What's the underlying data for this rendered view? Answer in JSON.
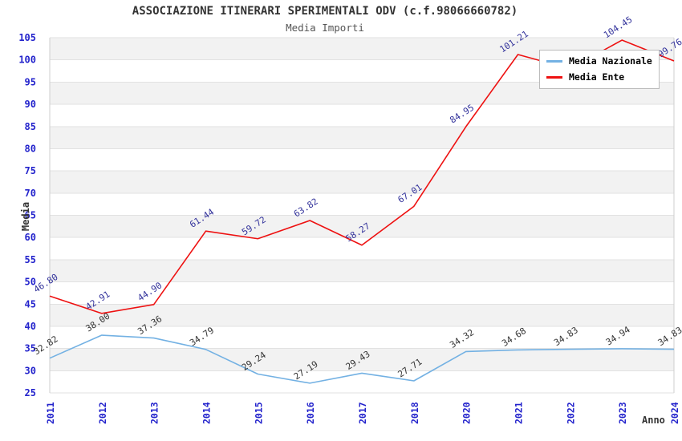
{
  "chart_data": {
    "type": "line",
    "title": "ASSOCIAZIONE ITINERARI SPERIMENTALI ODV (c.f.98066660782)",
    "subtitle": "Media Importi",
    "xlabel": "Anno",
    "ylabel": "Media",
    "ylim": [
      25,
      105
    ],
    "ytick_step": 5,
    "grid": "horizontal-bands",
    "legend_position": "top-right",
    "categories": [
      "2011",
      "2012",
      "2013",
      "2014",
      "2015",
      "2016",
      "2017",
      "2018",
      "2020",
      "2021",
      "2022",
      "2023",
      "2024"
    ],
    "series": [
      {
        "name": "Media Nazionale",
        "color": "#73b1e3",
        "label_color": "#333333",
        "values": [
          32.82,
          38.0,
          37.36,
          34.79,
          29.24,
          27.19,
          29.43,
          27.71,
          34.32,
          34.68,
          34.83,
          34.94,
          34.83
        ],
        "labels": [
          "32.82",
          "38.00",
          "37.36",
          "34.79",
          "29.24",
          "27.19",
          "29.43",
          "27.71",
          "34.32",
          "34.68",
          "34.83",
          "34.94",
          "34.83"
        ]
      },
      {
        "name": "Media Ente",
        "color": "#ee1111",
        "label_color": "#32329b",
        "values": [
          46.8,
          42.91,
          44.9,
          61.44,
          59.72,
          63.82,
          58.27,
          67.01,
          84.95,
          101.21,
          98.0,
          104.45,
          99.76
        ],
        "labels": [
          "46.80",
          "42.91",
          "44.90",
          "61.44",
          "59.72",
          "63.82",
          "58.27",
          "67.01",
          "84.95",
          "101.21",
          "",
          "104.45",
          "99.76"
        ]
      }
    ],
    "colors": {
      "band": "#f2f2f2",
      "grid": "#e2e2e2",
      "border": "#cfcfcf",
      "tick_label": "#2323cc",
      "axis_title": "#333333",
      "title": "#333333",
      "subtitle": "#555555",
      "legend_border": "#bbbbbb"
    }
  }
}
